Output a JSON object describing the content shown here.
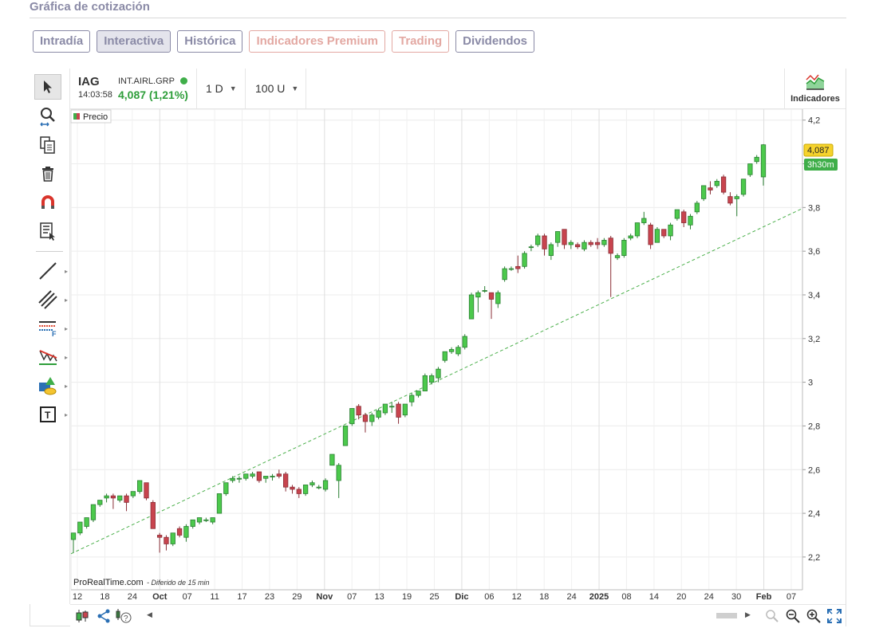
{
  "page": {
    "title": "Gráfica de cotización"
  },
  "tabs": [
    {
      "label": "Intradía"
    },
    {
      "label": "Interactiva"
    },
    {
      "label": "Histórica"
    },
    {
      "label": "Indicadores Premium"
    },
    {
      "label": "Trading"
    },
    {
      "label": "Dividendos"
    }
  ],
  "symbol": {
    "ticker": "IAG",
    "name": "INT.AIRL.GRP",
    "time": "14:03:58",
    "price_text": "4,087 (1,21%)"
  },
  "toolbar": {
    "period": "1 D",
    "units": "100 U",
    "indicators_label": "Indicadores"
  },
  "chart_data": {
    "type": "candlestick",
    "legend": "Precio",
    "watermark": "ProRealTime.com",
    "watermark_note": "- Diferido de 15 min",
    "last_price_label": "4,087",
    "countdown_label": "3h30m",
    "ylim": [
      2.05,
      4.25
    ],
    "y_ticks": [
      {
        "value": 2.2,
        "label": "2,2"
      },
      {
        "value": 2.4,
        "label": "2,4"
      },
      {
        "value": 2.6,
        "label": "2,6"
      },
      {
        "value": 2.8,
        "label": "2,8"
      },
      {
        "value": 3.0,
        "label": "3"
      },
      {
        "value": 3.2,
        "label": "3,2"
      },
      {
        "value": 3.4,
        "label": "3,4"
      },
      {
        "value": 3.6,
        "label": "3,6"
      },
      {
        "value": 3.8,
        "label": "3,8"
      },
      {
        "value": 4.0,
        "label": ""
      },
      {
        "value": 4.2,
        "label": "4,2"
      }
    ],
    "x_ticks": [
      {
        "label": "12",
        "bold": false
      },
      {
        "label": "18",
        "bold": false
      },
      {
        "label": "24",
        "bold": false
      },
      {
        "label": "Oct",
        "bold": true
      },
      {
        "label": "07",
        "bold": false
      },
      {
        "label": "11",
        "bold": false
      },
      {
        "label": "17",
        "bold": false
      },
      {
        "label": "23",
        "bold": false
      },
      {
        "label": "29",
        "bold": false
      },
      {
        "label": "Nov",
        "bold": true
      },
      {
        "label": "07",
        "bold": false
      },
      {
        "label": "13",
        "bold": false
      },
      {
        "label": "19",
        "bold": false
      },
      {
        "label": "25",
        "bold": false
      },
      {
        "label": "Dic",
        "bold": true
      },
      {
        "label": "06",
        "bold": false
      },
      {
        "label": "12",
        "bold": false
      },
      {
        "label": "18",
        "bold": false
      },
      {
        "label": "24",
        "bold": false
      },
      {
        "label": "2025",
        "bold": true
      },
      {
        "label": "08",
        "bold": false
      },
      {
        "label": "14",
        "bold": false
      },
      {
        "label": "20",
        "bold": false
      },
      {
        "label": "24",
        "bold": false
      },
      {
        "label": "30",
        "bold": false
      },
      {
        "label": "Feb",
        "bold": true
      },
      {
        "label": "07",
        "bold": false
      }
    ],
    "trendline": {
      "from": [
        0,
        2.22
      ],
      "to": [
        106,
        3.74
      ]
    },
    "ohlc": [
      [
        2.28,
        2.31,
        2.22,
        2.31
      ],
      [
        2.31,
        2.36,
        2.3,
        2.36
      ],
      [
        2.34,
        2.38,
        2.33,
        2.38
      ],
      [
        2.37,
        2.44,
        2.36,
        2.44
      ],
      [
        2.44,
        2.46,
        2.43,
        2.46
      ],
      [
        2.47,
        2.49,
        2.45,
        2.48
      ],
      [
        2.48,
        2.49,
        2.42,
        2.47
      ],
      [
        2.46,
        2.48,
        2.45,
        2.48
      ],
      [
        2.48,
        2.49,
        2.41,
        2.45
      ],
      [
        2.48,
        2.5,
        2.47,
        2.5
      ],
      [
        2.5,
        2.55,
        2.49,
        2.55
      ],
      [
        2.54,
        2.54,
        2.46,
        2.47
      ],
      [
        2.45,
        2.46,
        2.33,
        2.33
      ],
      [
        2.3,
        2.31,
        2.22,
        2.29
      ],
      [
        2.29,
        2.3,
        2.23,
        2.26
      ],
      [
        2.26,
        2.31,
        2.25,
        2.31
      ],
      [
        2.33,
        2.34,
        2.29,
        2.3
      ],
      [
        2.29,
        2.35,
        2.27,
        2.34
      ],
      [
        2.34,
        2.37,
        2.33,
        2.37
      ],
      [
        2.36,
        2.38,
        2.35,
        2.38
      ],
      [
        2.37,
        2.38,
        2.36,
        2.37
      ],
      [
        2.36,
        2.38,
        2.35,
        2.38
      ],
      [
        2.4,
        2.49,
        2.4,
        2.49
      ],
      [
        2.49,
        2.54,
        2.48,
        2.54
      ],
      [
        2.55,
        2.57,
        2.54,
        2.56
      ],
      [
        2.56,
        2.57,
        2.54,
        2.56
      ],
      [
        2.56,
        2.58,
        2.55,
        2.58
      ],
      [
        2.57,
        2.59,
        2.56,
        2.58
      ],
      [
        2.59,
        2.59,
        2.54,
        2.55
      ],
      [
        2.56,
        2.57,
        2.54,
        2.57
      ],
      [
        2.57,
        2.58,
        2.55,
        2.57
      ],
      [
        2.58,
        2.6,
        2.56,
        2.57
      ],
      [
        2.58,
        2.59,
        2.5,
        2.52
      ],
      [
        2.52,
        2.53,
        2.49,
        2.51
      ],
      [
        2.51,
        2.52,
        2.47,
        2.49
      ],
      [
        2.49,
        2.53,
        2.48,
        2.53
      ],
      [
        2.53,
        2.55,
        2.52,
        2.54
      ],
      [
        2.52,
        2.53,
        2.51,
        2.52
      ],
      [
        2.51,
        2.56,
        2.5,
        2.55
      ],
      [
        2.62,
        2.67,
        2.62,
        2.67
      ],
      [
        2.55,
        2.63,
        2.47,
        2.62
      ],
      [
        2.71,
        2.8,
        2.71,
        2.8
      ],
      [
        2.81,
        2.88,
        2.8,
        2.88
      ],
      [
        2.89,
        2.9,
        2.83,
        2.85
      ],
      [
        2.85,
        2.86,
        2.77,
        2.82
      ],
      [
        2.82,
        2.86,
        2.8,
        2.85
      ],
      [
        2.84,
        2.88,
        2.83,
        2.87
      ],
      [
        2.86,
        2.9,
        2.85,
        2.9
      ],
      [
        2.89,
        2.91,
        2.86,
        2.89
      ],
      [
        2.9,
        2.91,
        2.81,
        2.84
      ],
      [
        2.85,
        2.9,
        2.84,
        2.9
      ],
      [
        2.91,
        2.95,
        2.89,
        2.94
      ],
      [
        2.94,
        2.96,
        2.93,
        2.96
      ],
      [
        2.96,
        3.04,
        2.96,
        3.03
      ],
      [
        3.0,
        3.04,
        2.99,
        3.03
      ],
      [
        3.02,
        3.07,
        3.0,
        3.06
      ],
      [
        3.1,
        3.14,
        3.09,
        3.14
      ],
      [
        3.14,
        3.16,
        3.13,
        3.15
      ],
      [
        3.13,
        3.17,
        3.12,
        3.16
      ],
      [
        3.16,
        3.22,
        3.15,
        3.21
      ],
      [
        3.29,
        3.41,
        3.29,
        3.4
      ],
      [
        3.39,
        3.42,
        3.32,
        3.41
      ],
      [
        3.42,
        3.44,
        3.41,
        3.42
      ],
      [
        3.41,
        3.41,
        3.29,
        3.38
      ],
      [
        3.36,
        3.42,
        3.34,
        3.41
      ],
      [
        3.47,
        3.53,
        3.46,
        3.52
      ],
      [
        3.52,
        3.53,
        3.51,
        3.52
      ],
      [
        3.53,
        3.58,
        3.5,
        3.52
      ],
      [
        3.53,
        3.6,
        3.52,
        3.59
      ],
      [
        3.62,
        3.63,
        3.6,
        3.62
      ],
      [
        3.63,
        3.68,
        3.62,
        3.67
      ],
      [
        3.67,
        3.68,
        3.58,
        3.61
      ],
      [
        3.58,
        3.64,
        3.56,
        3.63
      ],
      [
        3.64,
        3.69,
        3.62,
        3.69
      ],
      [
        3.7,
        3.7,
        3.61,
        3.63
      ],
      [
        3.63,
        3.65,
        3.61,
        3.64
      ],
      [
        3.63,
        3.64,
        3.61,
        3.62
      ],
      [
        3.61,
        3.65,
        3.6,
        3.64
      ],
      [
        3.64,
        3.65,
        3.62,
        3.63
      ],
      [
        3.64,
        3.66,
        3.61,
        3.63
      ],
      [
        3.63,
        3.66,
        3.62,
        3.65
      ],
      [
        3.66,
        3.67,
        3.39,
        3.59
      ],
      [
        3.57,
        3.59,
        3.56,
        3.58
      ],
      [
        3.58,
        3.66,
        3.57,
        3.65
      ],
      [
        3.66,
        3.68,
        3.65,
        3.67
      ],
      [
        3.67,
        3.73,
        3.66,
        3.73
      ],
      [
        3.73,
        3.78,
        3.72,
        3.75
      ],
      [
        3.72,
        3.73,
        3.61,
        3.63
      ],
      [
        3.64,
        3.71,
        3.64,
        3.7
      ],
      [
        3.7,
        3.7,
        3.66,
        3.67
      ],
      [
        3.67,
        3.73,
        3.65,
        3.72
      ],
      [
        3.75,
        3.79,
        3.74,
        3.79
      ],
      [
        3.78,
        3.79,
        3.71,
        3.73
      ],
      [
        3.72,
        3.77,
        3.7,
        3.76
      ],
      [
        3.78,
        3.83,
        3.77,
        3.82
      ],
      [
        3.84,
        3.9,
        3.83,
        3.9
      ],
      [
        3.89,
        3.92,
        3.86,
        3.88
      ],
      [
        3.9,
        3.93,
        3.89,
        3.92
      ],
      [
        3.94,
        3.95,
        3.86,
        3.87
      ],
      [
        3.85,
        3.87,
        3.81,
        3.82
      ],
      [
        3.84,
        3.86,
        3.76,
        3.85
      ],
      [
        3.86,
        3.93,
        3.85,
        3.93
      ],
      [
        3.95,
        4.0,
        3.94,
        4.0
      ],
      [
        4.01,
        4.04,
        4.0,
        4.03
      ],
      [
        3.94,
        4.09,
        3.9,
        4.087
      ]
    ]
  }
}
